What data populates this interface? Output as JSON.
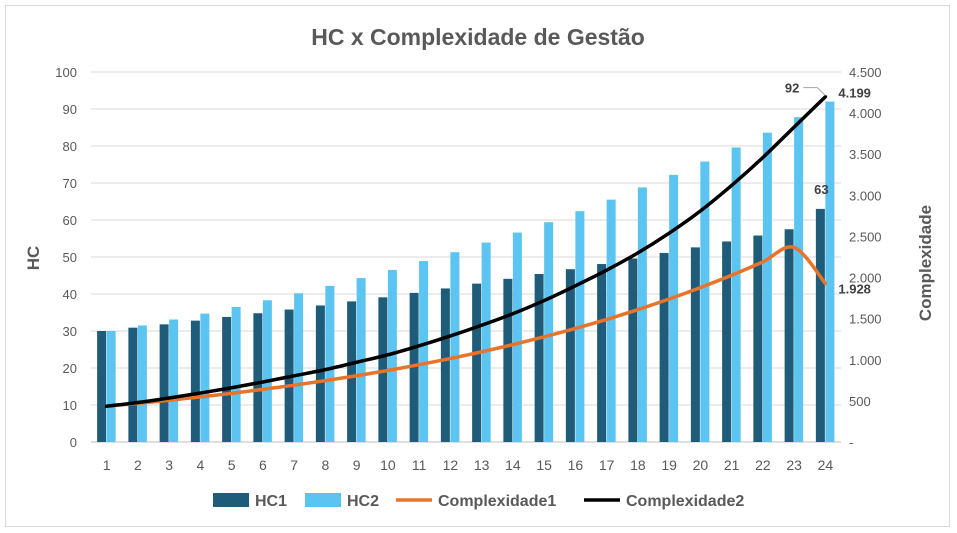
{
  "chart_data": {
    "type": "bar",
    "title": "HC x Complexidade de Gestão",
    "ylabel": "HC",
    "y2label": "Complexidade",
    "categories": [
      "1",
      "2",
      "3",
      "4",
      "5",
      "6",
      "7",
      "8",
      "9",
      "10",
      "11",
      "12",
      "13",
      "14",
      "15",
      "16",
      "17",
      "18",
      "19",
      "20",
      "21",
      "22",
      "23",
      "24"
    ],
    "ylim": [
      0,
      100
    ],
    "yticks": [
      0,
      10,
      20,
      30,
      40,
      50,
      60,
      70,
      80,
      90,
      100
    ],
    "y2lim": [
      0,
      4500
    ],
    "y2ticks": [
      "-",
      "500",
      "1.000",
      "1.500",
      "2.000",
      "2.500",
      "3.000",
      "3.500",
      "4.000",
      "4.500"
    ],
    "grid": true,
    "legend_position": "bottom",
    "series": [
      {
        "name": "HC1",
        "type": "bar",
        "axis": "left",
        "color": "#1f5c7a",
        "values": [
          30,
          30.9,
          31.8,
          32.8,
          33.8,
          34.8,
          35.8,
          36.9,
          38.0,
          39.1,
          40.3,
          41.5,
          42.8,
          44.1,
          45.4,
          46.7,
          48.1,
          49.6,
          51.1,
          52.6,
          54.2,
          55.8,
          57.5,
          63
        ]
      },
      {
        "name": "HC2",
        "type": "bar",
        "axis": "left",
        "color": "#5bc4f1",
        "values": [
          30,
          31.5,
          33.1,
          34.7,
          36.5,
          38.3,
          40.2,
          42.2,
          44.3,
          46.5,
          48.9,
          51.3,
          53.9,
          56.6,
          59.4,
          62.4,
          65.5,
          68.8,
          72.2,
          75.8,
          79.6,
          83.6,
          87.8,
          92
        ]
      },
      {
        "name": "Complexidade1",
        "type": "line",
        "axis": "right",
        "color": "#e8732a",
        "values": [
          435,
          470,
          508,
          548,
          592,
          640,
          691,
          746,
          806,
          870,
          940,
          1015,
          1096,
          1184,
          1279,
          1381,
          1491,
          1610,
          1739,
          1878,
          2028,
          2191,
          2366,
          1928
        ]
      },
      {
        "name": "Complexidade2",
        "type": "line",
        "axis": "right",
        "color": "#000000",
        "values": [
          435,
          480,
          535,
          595,
          660,
          730,
          805,
          880,
          970,
          1060,
          1170,
          1290,
          1420,
          1560,
          1720,
          1900,
          2090,
          2300,
          2540,
          2810,
          3120,
          3460,
          3830,
          4199
        ]
      }
    ],
    "data_labels": [
      {
        "series": "HC2",
        "index": 23,
        "text": "92"
      },
      {
        "series": "HC1",
        "index": 23,
        "text": "63"
      },
      {
        "series": "Complexidade2",
        "index": 23,
        "text": "4.199"
      },
      {
        "series": "Complexidade1",
        "index": 23,
        "text": "1.928"
      }
    ]
  }
}
